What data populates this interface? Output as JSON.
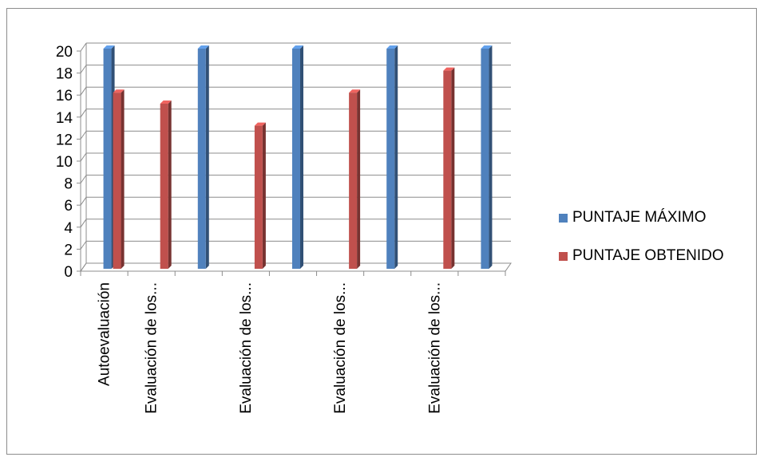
{
  "chart_data": {
    "type": "bar",
    "categories": [
      "Autoevaluación",
      "Evaluación de los...",
      "",
      "Evaluación de los...",
      "",
      "Evaluación de los...",
      "",
      "Evaluación de los...",
      ""
    ],
    "series": [
      {
        "name": "PUNTAJE MÁXIMO",
        "color": "#4f81bd",
        "values": [
          20,
          null,
          20,
          null,
          20,
          null,
          20,
          null,
          20
        ]
      },
      {
        "name": "PUNTAJE OBTENIDO",
        "color": "#c0504d",
        "values": [
          16,
          15,
          null,
          13,
          null,
          16,
          null,
          18,
          null
        ]
      }
    ],
    "ylim": [
      0,
      20
    ],
    "yticks": [
      "0",
      "2",
      "4",
      "6",
      "8",
      "10",
      "12",
      "14",
      "16",
      "18",
      "20"
    ],
    "grid": true,
    "legend_position": "right",
    "three_d": true
  }
}
